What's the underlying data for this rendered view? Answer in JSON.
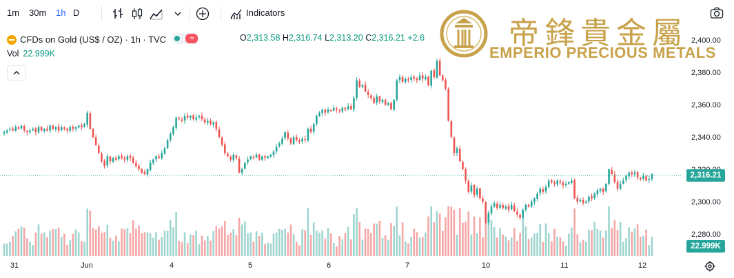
{
  "toolbar": {
    "intervals": [
      "1m",
      "30m",
      "1h",
      "D"
    ],
    "active_interval": "1h",
    "indicators_label": "Indicators"
  },
  "legend": {
    "symbol": "CFDs on Gold (US$ / OZ) · 1h · TVC",
    "ohlc": {
      "o_label": "O",
      "o": "2,313.58",
      "h_label": "H",
      "h": "2,316.74",
      "l_label": "L",
      "l": "2,313.20",
      "c_label": "C",
      "c": "2,316.21",
      "change": "+2.6"
    },
    "vol_label": "Vol",
    "vol_value": "22.999K"
  },
  "watermark": {
    "chinese": "帝鋒貴金屬",
    "english": "EMPERIO PRECIOUS METALS"
  },
  "colors": {
    "up": "#26a69a",
    "down": "#ef5350",
    "vol_up": "#9ed5cf",
    "vol_down": "#f5a6a6",
    "price_line": "#26a69a",
    "accent": "#c8a24a"
  },
  "chart_data": {
    "type": "candlestick",
    "symbol": "TVC:GOLD",
    "interval": "1h",
    "ylim": [
      2284,
      2392
    ],
    "y_ticks": [
      "2,280.00",
      "2,300.00",
      "2,320.00",
      "2,340.00",
      "2,360.00",
      "2,380.00",
      "2,400.00"
    ],
    "y_tick_values": [
      2280,
      2300,
      2320,
      2340,
      2360,
      2380,
      2400
    ],
    "x_ticks": [
      "31",
      "Jun",
      "4",
      "5",
      "6",
      "7",
      "10",
      "11",
      "12"
    ],
    "last_price": "2,316.21",
    "last_price_value": 2316.21,
    "last_volume": "22.999K",
    "close_series": [
      2343,
      2344,
      2345,
      2344,
      2346,
      2345,
      2347,
      2344,
      2343,
      2344,
      2345,
      2343,
      2346,
      2344,
      2345,
      2344,
      2347,
      2345,
      2346,
      2344,
      2346,
      2345,
      2344,
      2346,
      2345,
      2346,
      2347,
      2346,
      2348,
      2355,
      2345,
      2340,
      2335,
      2330,
      2325,
      2322,
      2328,
      2325,
      2327,
      2326,
      2328,
      2327,
      2326,
      2328,
      2327,
      2324,
      2322,
      2320,
      2318,
      2317,
      2320,
      2324,
      2326,
      2328,
      2327,
      2330,
      2333,
      2338,
      2342,
      2346,
      2352,
      2351,
      2350,
      2353,
      2352,
      2353,
      2351,
      2352,
      2353,
      2351,
      2349,
      2350,
      2348,
      2349,
      2345,
      2340,
      2335,
      2330,
      2328,
      2326,
      2329,
      2327,
      2318,
      2320,
      2324,
      2326,
      2328,
      2327,
      2329,
      2326,
      2328,
      2327,
      2328,
      2329,
      2331,
      2334,
      2336,
      2339,
      2343,
      2339,
      2336,
      2340,
      2338,
      2337,
      2339,
      2338,
      2345,
      2343,
      2348,
      2353,
      2355,
      2357,
      2355,
      2357,
      2356,
      2358,
      2357,
      2356,
      2358,
      2357,
      2359,
      2357,
      2364,
      2375,
      2371,
      2372,
      2368,
      2366,
      2364,
      2361,
      2365,
      2362,
      2363,
      2360,
      2361,
      2357,
      2363,
      2375,
      2377,
      2374,
      2376,
      2375,
      2377,
      2376,
      2375,
      2378,
      2376,
      2377,
      2372,
      2381,
      2377,
      2387,
      2378,
      2375,
      2370,
      2350,
      2340,
      2330,
      2333,
      2325,
      2320,
      2313,
      2306,
      2310,
      2304,
      2308,
      2302,
      2300,
      2287,
      2293,
      2297,
      2299,
      2296,
      2298,
      2296,
      2297,
      2295,
      2298,
      2294,
      2292,
      2290,
      2295,
      2298,
      2297,
      2300,
      2302,
      2305,
      2308,
      2306,
      2309,
      2313,
      2312,
      2311,
      2313,
      2312,
      2310,
      2311,
      2312,
      2313,
      2302,
      2300,
      2301,
      2299,
      2300,
      2303,
      2302,
      2305,
      2307,
      2308,
      2306,
      2311,
      2320,
      2317,
      2312,
      2308,
      2311,
      2313,
      2316,
      2318,
      2317,
      2318,
      2315,
      2314,
      2316,
      2313,
      2314,
      2317
    ]
  }
}
